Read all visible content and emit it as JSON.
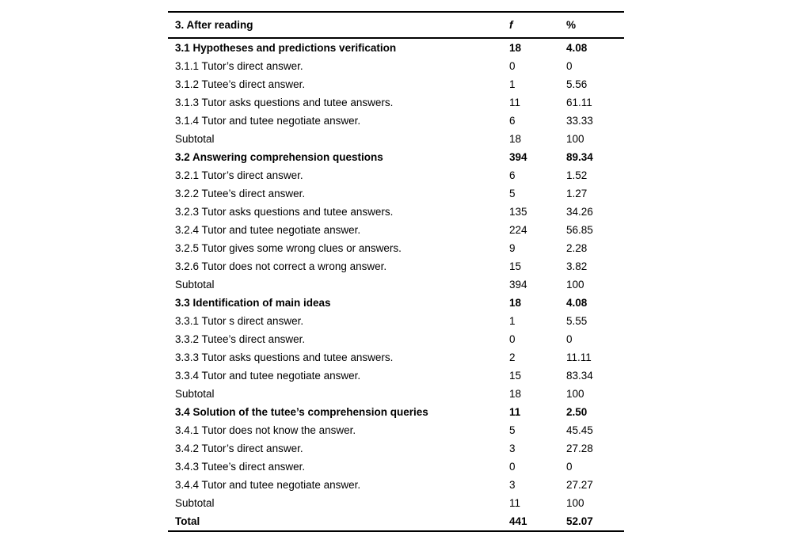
{
  "colors": {
    "background": "#ffffff",
    "text": "#000000",
    "rule": "#000000"
  },
  "table": {
    "header": {
      "label": "3. After reading",
      "f": "f",
      "pct": "%"
    },
    "rows": [
      {
        "label": "3.1 Hypotheses and predictions verification",
        "f": "18",
        "pct": "4.08",
        "bold": true
      },
      {
        "label": "3.1.1 Tutor’s direct answer.",
        "f": "0",
        "pct": "0",
        "bold": false
      },
      {
        "label": "3.1.2 Tutee’s direct answer.",
        "f": "1",
        "pct": "5.56",
        "bold": false
      },
      {
        "label": "3.1.3 Tutor asks questions and tutee answers.",
        "f": "11",
        "pct": "61.11",
        "bold": false
      },
      {
        "label": "3.1.4 Tutor and tutee negotiate answer.",
        "f": "6",
        "pct": "33.33",
        "bold": false
      },
      {
        "label": "Subtotal",
        "f": "18",
        "pct": "100",
        "bold": false
      },
      {
        "label": "3.2 Answering comprehension questions",
        "f": "394",
        "pct": "89.34",
        "bold": true
      },
      {
        "label": "3.2.1 Tutor’s direct answer.",
        "f": "6",
        "pct": "1.52",
        "bold": false
      },
      {
        "label": "3.2.2 Tutee’s direct answer.",
        "f": "5",
        "pct": "1.27",
        "bold": false
      },
      {
        "label": "3.2.3 Tutor asks questions and tutee answers.",
        "f": "135",
        "pct": "34.26",
        "bold": false
      },
      {
        "label": "3.2.4 Tutor and tutee negotiate answer.",
        "f": "224",
        "pct": "56.85",
        "bold": false
      },
      {
        "label": "3.2.5 Tutor gives some wrong clues or answers.",
        "f": "9",
        "pct": "2.28",
        "bold": false
      },
      {
        "label": "3.2.6 Tutor does not correct a wrong answer.",
        "f": "15",
        "pct": "3.82",
        "bold": false
      },
      {
        "label": "Subtotal",
        "f": "394",
        "pct": "100",
        "bold": false
      },
      {
        "label": "3.3 Identification of main ideas",
        "f": "18",
        "pct": "4.08",
        "bold": true
      },
      {
        "label": "3.3.1 Tutor s direct answer.",
        "f": "1",
        "pct": "5.55",
        "bold": false
      },
      {
        "label": "3.3.2 Tutee’s direct answer.",
        "f": "0",
        "pct": "0",
        "bold": false
      },
      {
        "label": "3.3.3 Tutor asks questions and tutee answers.",
        "f": "2",
        "pct": "11.11",
        "bold": false
      },
      {
        "label": "3.3.4 Tutor and tutee negotiate answer.",
        "f": "15",
        "pct": "83.34",
        "bold": false
      },
      {
        "label": "Subtotal",
        "f": "18",
        "pct": "100",
        "bold": false
      },
      {
        "label": "3.4 Solution of the tutee’s comprehension queries",
        "f": "11",
        "pct": "2.50",
        "bold": true
      },
      {
        "label": "3.4.1 Tutor does not know the answer.",
        "f": "5",
        "pct": "45.45",
        "bold": false
      },
      {
        "label": "3.4.2 Tutor’s direct answer.",
        "f": "3",
        "pct": "27.28",
        "bold": false
      },
      {
        "label": "3.4.3 Tutee’s direct answer.",
        "f": "0",
        "pct": "0",
        "bold": false
      },
      {
        "label": "3.4.4 Tutor and tutee negotiate answer.",
        "f": "3",
        "pct": "27.27",
        "bold": false
      },
      {
        "label": "Subtotal",
        "f": "11",
        "pct": "100",
        "bold": false
      },
      {
        "label": "Total",
        "f": "441",
        "pct": "52.07",
        "bold": true
      }
    ]
  }
}
